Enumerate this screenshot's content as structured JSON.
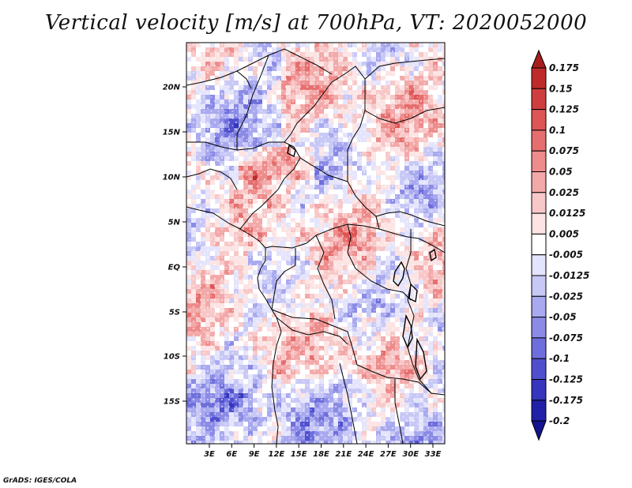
{
  "title": "Vertical velocity [m/s] at 700hPa, VT: 2020052000",
  "credit": "GrADS: IGES/COLA",
  "lat_labels": [
    "20N",
    "15N",
    "10N",
    "5N",
    "EQ",
    "5S",
    "10S",
    "15S"
  ],
  "lon_labels": [
    "3E",
    "6E",
    "9E",
    "12E",
    "15E",
    "18E",
    "21E",
    "24E",
    "27E",
    "30E",
    "33E"
  ],
  "colorbar": {
    "levels": [
      "0.175",
      "0.15",
      "0.125",
      "0.1",
      "0.075",
      "0.05",
      "0.025",
      "0.0125",
      "0.005",
      "-0.005",
      "-0.0125",
      "-0.025",
      "-0.05",
      "-0.075",
      "-0.1",
      "-0.125",
      "-0.175",
      "-0.2"
    ],
    "colors": [
      "#a81e1e",
      "#bf2b2b",
      "#cf3e3e",
      "#dd5555",
      "#e66e6e",
      "#ee8b8b",
      "#f3a9a9",
      "#f8c8c8",
      "#fce4e4",
      "#ffffff",
      "#e4e4fc",
      "#c8c8f6",
      "#a9a9f0",
      "#8b8be6",
      "#6e6edc",
      "#5050cf",
      "#3535bd",
      "#2020a8",
      "#14148f"
    ]
  },
  "colors": {
    "positive": "#cf3e3e",
    "negative": "#3535bd",
    "border": "#000000"
  }
}
